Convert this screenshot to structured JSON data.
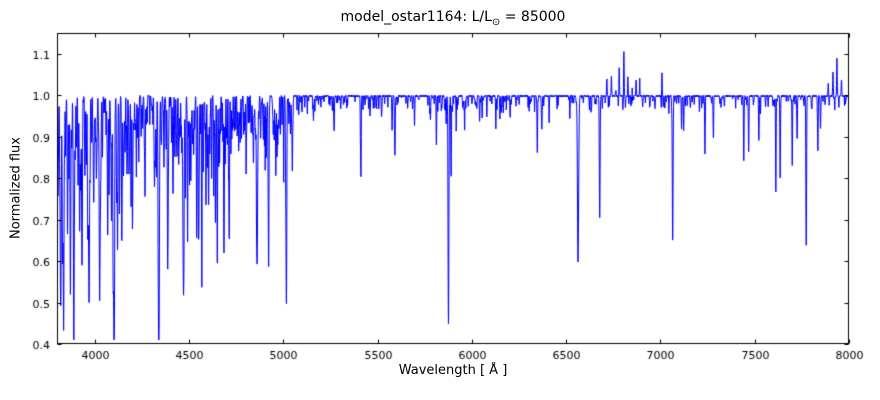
{
  "title": {
    "prefix": "model_ostar1164: L/L",
    "sub": "⊙",
    "suffix": " = 85000"
  },
  "chart_data": {
    "type": "line",
    "title": "model_ostar1164: L/L⊙ = 85000",
    "xlabel": "Wavelength [ Å ]",
    "ylabel": "Normalized flux",
    "xlim": [
      3800,
      8000
    ],
    "ylim": [
      0.4,
      1.15
    ],
    "xticks": [
      4000,
      4500,
      5000,
      5500,
      6000,
      6500,
      7000,
      7500,
      8000
    ],
    "yticks": [
      0.4,
      0.5,
      0.6,
      0.7,
      0.8,
      0.9,
      1.0,
      1.1
    ],
    "grid": false,
    "legend": "none",
    "line_color": "#0000ff",
    "continuum": 1.0,
    "absorption_lines": [
      [
        3797,
        0.62,
        2.5
      ],
      [
        3805,
        0.78,
        2
      ],
      [
        3815,
        0.88,
        1.5
      ],
      [
        3820,
        0.5,
        2.5
      ],
      [
        3829,
        0.72,
        1.8
      ],
      [
        3835,
        0.53,
        2.5
      ],
      [
        3846,
        0.85,
        1.5
      ],
      [
        3856,
        0.68,
        2
      ],
      [
        3863,
        0.8,
        1.5
      ],
      [
        3871,
        0.62,
        2
      ],
      [
        3878,
        0.88,
        1.5
      ],
      [
        3889,
        0.5,
        2.5
      ],
      [
        3903,
        0.9,
        1.5
      ],
      [
        3912,
        0.85,
        1.5
      ],
      [
        3920,
        0.7,
        2
      ],
      [
        3926,
        0.78,
        1.5
      ],
      [
        3933,
        0.62,
        2
      ],
      [
        3948,
        0.88,
        1.5
      ],
      [
        3955,
        0.85,
        1.5
      ],
      [
        3964,
        0.72,
        2
      ],
      [
        3970,
        0.5,
        2.5
      ],
      [
        3983,
        0.9,
        1.5
      ],
      [
        3995,
        0.78,
        1.8
      ],
      [
        4009,
        0.8,
        1.8
      ],
      [
        4026,
        0.53,
        2.5
      ],
      [
        4041,
        0.85,
        1.5
      ],
      [
        4069,
        0.73,
        1.8
      ],
      [
        4076,
        0.76,
        1.5
      ],
      [
        4089,
        0.7,
        1.8
      ],
      [
        4097,
        0.74,
        1.5
      ],
      [
        4102,
        0.5,
        3
      ],
      [
        4116,
        0.8,
        1.5
      ],
      [
        4121,
        0.72,
        1.8
      ],
      [
        4132,
        0.88,
        1.5
      ],
      [
        4144,
        0.7,
        1.8
      ],
      [
        4153,
        0.82,
        1.5
      ],
      [
        4171,
        0.88,
        1.5
      ],
      [
        4186,
        0.9,
        1.5
      ],
      [
        4200,
        0.75,
        1.8
      ],
      [
        4216,
        0.92,
        1.5
      ],
      [
        4233,
        0.9,
        1.5
      ],
      [
        4254,
        0.92,
        1.5
      ],
      [
        4267,
        0.8,
        1.5
      ],
      [
        4317,
        0.88,
        1.5
      ],
      [
        4326,
        0.9,
        1.5
      ],
      [
        4340,
        0.5,
        3
      ],
      [
        4367,
        0.85,
        1.5
      ],
      [
        4379,
        0.87,
        1.5
      ],
      [
        4387,
        0.65,
        2
      ],
      [
        4415,
        0.78,
        1.8
      ],
      [
        4437,
        0.88,
        1.5
      ],
      [
        4471,
        0.52,
        2.5
      ],
      [
        4481,
        0.85,
        1.5
      ],
      [
        4511,
        0.9,
        1.5
      ],
      [
        4541,
        0.78,
        1.8
      ],
      [
        4552,
        0.7,
        1.8
      ],
      [
        4568,
        0.74,
        1.5
      ],
      [
        4576,
        0.82,
        1.5
      ],
      [
        4590,
        0.73,
        1.5
      ],
      [
        4604,
        0.74,
        1.8
      ],
      [
        4620,
        0.8,
        1.5
      ],
      [
        4631,
        0.82,
        1.5
      ],
      [
        4640,
        0.76,
        1.5
      ],
      [
        4650,
        0.7,
        1.8
      ],
      [
        4658,
        0.85,
        1.5
      ],
      [
        4686,
        0.73,
        1.8
      ],
      [
        4713,
        0.73,
        1.8
      ],
      [
        4861,
        0.6,
        3
      ],
      [
        4880,
        0.9,
        1.5
      ],
      [
        4922,
        0.68,
        2
      ],
      [
        4959,
        0.95,
        1.5
      ],
      [
        5016,
        0.6,
        2
      ],
      [
        5048,
        0.82,
        1.5
      ],
      [
        5160,
        0.94,
        1.5
      ],
      [
        5270,
        0.95,
        1.5
      ],
      [
        5411,
        0.84,
        1.8
      ],
      [
        5460,
        0.95,
        1.5
      ],
      [
        5577,
        0.92,
        1.5
      ],
      [
        5592,
        0.87,
        1.8
      ],
      [
        5696,
        0.93,
        1.5
      ],
      [
        5780,
        0.95,
        1.5
      ],
      [
        5812,
        0.88,
        1.5
      ],
      [
        5876,
        0.45,
        2.2
      ],
      [
        5890,
        0.8,
        1.5
      ],
      [
        6150,
        0.96,
        1.5
      ],
      [
        6203,
        0.95,
        1.5
      ],
      [
        6347,
        0.9,
        1.5
      ],
      [
        6371,
        0.92,
        1.5
      ],
      [
        6563,
        0.6,
        3
      ],
      [
        6678,
        0.7,
        2
      ],
      [
        7065,
        0.65,
        2
      ],
      [
        7112,
        0.92,
        1.5
      ],
      [
        7123,
        0.93,
        1.5
      ],
      [
        7236,
        0.86,
        1.5
      ],
      [
        7281,
        0.9,
        1.5
      ],
      [
        7442,
        0.84,
        1.5
      ],
      [
        7468,
        0.87,
        1.5
      ],
      [
        7522,
        0.89,
        1.5
      ],
      [
        7612,
        0.77,
        1.5
      ],
      [
        7635,
        0.8,
        1.5
      ],
      [
        7699,
        0.83,
        1.5
      ],
      [
        7725,
        0.9,
        1.5
      ],
      [
        7772,
        0.79,
        1.5
      ],
      [
        7774,
        0.77,
        1.5
      ],
      [
        7835,
        0.9,
        1.5
      ],
      [
        7849,
        0.92,
        1.5
      ]
    ],
    "emission_lines": [
      [
        6716,
        1.04,
        1.5
      ],
      [
        6740,
        1.05,
        1.5
      ],
      [
        6763,
        1.03,
        1.5
      ],
      [
        6781,
        1.08,
        1.5
      ],
      [
        6806,
        1.115,
        1.5
      ],
      [
        6827,
        1.05,
        1.5
      ],
      [
        6850,
        1.03,
        1.5
      ],
      [
        6871,
        1.04,
        1.5
      ],
      [
        6890,
        1.07,
        1.5
      ],
      [
        7008,
        1.07,
        1.5
      ],
      [
        7890,
        1.03,
        1.5
      ],
      [
        7915,
        1.06,
        1.5
      ],
      [
        7936,
        1.09,
        1.5
      ],
      [
        7960,
        1.04,
        1.5
      ]
    ],
    "noise": {
      "seed": 7,
      "bands": [
        {
          "range": [
            3800,
            5060
          ],
          "count": 380,
          "depth": [
            0.01,
            0.1
          ],
          "sigma": [
            0.7,
            1.6
          ]
        },
        {
          "range": [
            5060,
            6550
          ],
          "count": 170,
          "depth": [
            0.005,
            0.04
          ],
          "sigma": [
            0.7,
            1.5
          ]
        },
        {
          "range": [
            6550,
            8000
          ],
          "count": 130,
          "depth": [
            0.005,
            0.03
          ],
          "sigma": [
            0.7,
            1.5
          ]
        }
      ],
      "jitter": 0.004
    }
  }
}
